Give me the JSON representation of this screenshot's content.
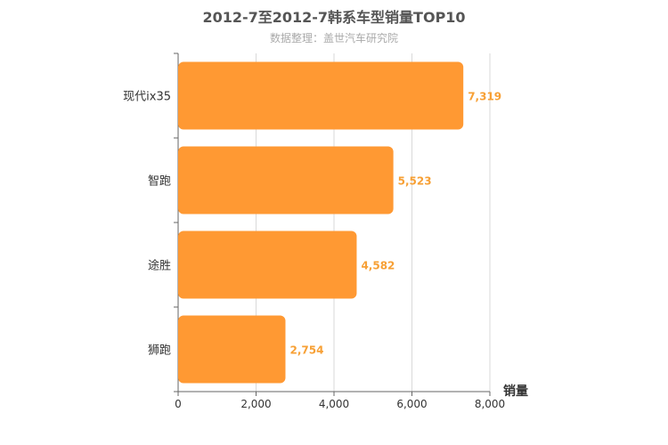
{
  "chart_data": {
    "type": "bar",
    "orientation": "horizontal",
    "title": "2012-7至2012-7韩系车型销量TOP10",
    "subtitle": "数据整理：盖世汽车研究院",
    "categories": [
      "现代ix35",
      "智跑",
      "途胜",
      "狮跑"
    ],
    "values": [
      7319,
      5523,
      4582,
      2754
    ],
    "value_labels": [
      "7,319",
      "5,523",
      "4,582",
      "2,754"
    ],
    "xlabel": "销量",
    "ylabel": "",
    "xlim": [
      0,
      8000
    ],
    "ticks": [
      0,
      2000,
      4000,
      6000,
      8000
    ],
    "tick_labels": [
      "0",
      "2,000",
      "4,000",
      "6,000",
      "8,000"
    ],
    "bar_color": "#ff9933",
    "label_color": "#f7a035",
    "grid": true,
    "legend": "none"
  }
}
